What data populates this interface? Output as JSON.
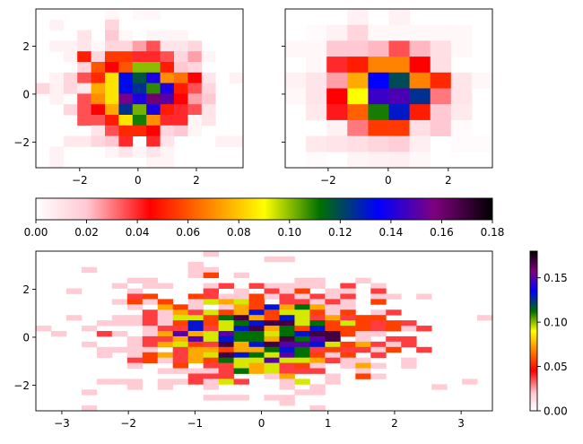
{
  "colormap": {
    "stops": [
      {
        "v": 0.0,
        "color": "#ffffff"
      },
      {
        "v": 0.02,
        "color": "#ffc8d2"
      },
      {
        "v": 0.045,
        "color": "#ff0000"
      },
      {
        "v": 0.09,
        "color": "#ffff00"
      },
      {
        "v": 0.112,
        "color": "#007000"
      },
      {
        "v": 0.135,
        "color": "#0000ff"
      },
      {
        "v": 0.157,
        "color": "#800080"
      },
      {
        "v": 0.18,
        "color": "#000000"
      }
    ]
  },
  "chart_data": [
    {
      "type": "heatmap",
      "title": "",
      "xlim": [
        -3.5,
        3.6
      ],
      "ylim": [
        -3.07,
        3.55
      ],
      "xticks": [
        -2,
        0,
        2
      ],
      "yticks": [
        -2,
        0,
        2
      ],
      "xtick_labels": [
        "−2",
        "0",
        "2"
      ],
      "ytick_labels": [
        "−2",
        "0",
        "2"
      ],
      "vmin": 0,
      "vmax": 0.18,
      "values": [
        [
          0,
          0,
          0,
          0,
          0,
          0.003,
          0,
          0.003,
          0.003,
          0,
          0,
          0,
          0,
          0,
          0
        ],
        [
          0,
          0.005,
          0,
          0,
          0,
          0.015,
          0,
          0,
          0,
          0,
          0,
          0,
          0,
          0,
          0
        ],
        [
          0,
          0,
          0,
          0.01,
          0,
          0.02,
          0.003,
          0,
          0.004,
          0.004,
          0.004,
          0,
          0,
          0,
          0
        ],
        [
          0,
          0.005,
          0.005,
          0.01,
          0.003,
          0.015,
          0.015,
          0.025,
          0.035,
          0.01,
          0.01,
          0.015,
          0,
          0,
          0
        ],
        [
          0,
          0,
          0.005,
          0.05,
          0.015,
          0.055,
          0.055,
          0.04,
          0.04,
          0.035,
          0.015,
          0.025,
          0.004,
          0,
          0
        ],
        [
          0,
          0,
          0,
          0.015,
          0.06,
          0.045,
          0.06,
          0.1,
          0.1,
          0.05,
          0.02,
          0.015,
          0,
          0,
          0
        ],
        [
          0,
          0.005,
          0.015,
          0.035,
          0.052,
          0.085,
          0.133,
          0.118,
          0.14,
          0.07,
          0.065,
          0.045,
          0.01,
          0,
          0.005
        ],
        [
          0.015,
          0.005,
          0.015,
          0.008,
          0.075,
          0.085,
          0.133,
          0.125,
          0.108,
          0.14,
          0.05,
          0.035,
          0.015,
          0,
          0
        ],
        [
          0,
          0.005,
          0,
          0.035,
          0.07,
          0.085,
          0.155,
          0.14,
          0.16,
          0.15,
          0.045,
          0.025,
          0.02,
          0,
          0
        ],
        [
          0,
          0,
          0.015,
          0.035,
          0.045,
          0.075,
          0.125,
          0.102,
          0.14,
          0.05,
          0.04,
          0.035,
          0.01,
          0,
          0
        ],
        [
          0,
          0,
          0,
          0.035,
          0.035,
          0.05,
          0.085,
          0.11,
          0.07,
          0.04,
          0.04,
          0.004,
          0.01,
          0,
          0
        ],
        [
          0,
          0,
          0,
          0,
          0.01,
          0.035,
          0.052,
          0.052,
          0.045,
          0.015,
          0.02,
          0.004,
          0,
          0,
          0
        ],
        [
          0,
          0,
          0.008,
          0.008,
          0.015,
          0.02,
          0.04,
          0,
          0.04,
          0.01,
          0,
          0,
          0,
          0.005,
          0.005
        ],
        [
          0,
          0.005,
          0,
          0,
          0,
          0.004,
          0.01,
          0.004,
          0.01,
          0.004,
          0,
          0,
          0,
          0,
          0
        ],
        [
          0,
          0.005,
          0,
          0,
          0,
          0,
          0,
          0,
          0.004,
          0.004,
          0,
          0,
          0,
          0,
          0
        ]
      ]
    },
    {
      "type": "heatmap",
      "title": "",
      "xlim": [
        -3.43,
        3.47
      ],
      "ylim": [
        -3.07,
        3.55
      ],
      "xticks": [
        -2,
        0,
        2
      ],
      "yticks": [
        -2,
        0,
        2
      ],
      "xtick_labels": [
        "−2",
        "0",
        "2"
      ],
      "ytick_labels": [
        "",
        "",
        ""
      ],
      "vmin": 0,
      "vmax": 0.18,
      "values": [
        [
          0,
          0,
          0,
          0.005,
          0,
          0.005,
          0,
          0,
          0,
          0
        ],
        [
          0,
          0.002,
          0.005,
          0.015,
          0.003,
          0.003,
          0.003,
          0.003,
          0.003,
          0
        ],
        [
          0.003,
          0.003,
          0.02,
          0.02,
          0.022,
          0.035,
          0.022,
          0.012,
          0.003,
          0
        ],
        [
          0,
          0.003,
          0.04,
          0.05,
          0.068,
          0.068,
          0.045,
          0.012,
          0,
          0
        ],
        [
          0.005,
          0.01,
          0.025,
          0.075,
          0.135,
          0.12,
          0.068,
          0.052,
          0.01,
          0.003
        ],
        [
          0.003,
          0.01,
          0.045,
          0.09,
          0.145,
          0.148,
          0.125,
          0.03,
          0.01,
          0
        ],
        [
          0,
          0.008,
          0.042,
          0.062,
          0.11,
          0.13,
          0.05,
          0.02,
          0.008,
          0
        ],
        [
          0,
          0,
          0.005,
          0.03,
          0.055,
          0.055,
          0.012,
          0.02,
          0.002,
          0
        ],
        [
          0,
          0.008,
          0.01,
          0.012,
          0.015,
          0.018,
          0.006,
          0,
          0.002,
          0.002
        ],
        [
          0,
          0.002,
          0,
          0.004,
          0.005,
          0.006,
          0.003,
          0,
          0,
          0
        ]
      ]
    },
    {
      "type": "heatmap",
      "title": "",
      "xlim": [
        -3.39,
        3.47
      ],
      "ylim": [
        -3.07,
        3.59
      ],
      "xticks": [
        -3,
        -2,
        -1,
        0,
        1,
        2,
        3
      ],
      "yticks": [
        -2,
        0,
        2
      ],
      "xtick_labels": [
        "−3",
        "−2",
        "−1",
        "0",
        "1",
        "2",
        "3"
      ],
      "ytick_labels": [
        "−2",
        "0",
        "2"
      ],
      "vmin": 0,
      "vmax": 0.18,
      "value_per_count": 0.0187,
      "count_rows": [
        "00000|00000|01000|00000|00000|00000",
        "00000|00000|00000|11000|00000|00000",
        "00000|00000|10000|00000|00000|00000",
        "00010|00000|11000|00000|00000|00000",
        "00000|00000|13010|00000|00000|00000",
        "00000|01100|00000|00110|01000|00000",
        "00000|10110|01202|11110|20100|00000",
        "00100|01000|02010|21301|10200|00000",
        "00000|02300|32113|12121|20110|10000",
        "00000|13130|15453|02212|10300|00000",
        "00000|01043|10143|74641|10000|00000",
        "00000|00214|25347|35531|30120|00000",
        "00100|11215|53694|37524|23300|00001",
        "00001|11213|73567|99563|53232|00000",
        "10010|00122|72579|46373|33231|20000",
        "01002|10148|45866|56799|31100|00000",
        "00000|01224|85766|49689|01022|00000",
        "00010|01245|32947|98875|34212|00000",
        "00001|11102|44344|67623|22130|20000",
        "00001|01342|45976|58631|30200|00000",
        "00000|02312|43655|85542|11001|00000",
        "00000|01003|02254|52310|14101|00000",
        "00000|00011|11264|52220|01000|00000",
        "00000|00000|22200|14001|03100|00000",
        "00001|11011|21520|01501|00000|00010",
        "00000|01010|01000|01010|00000|01000",
        "00010|00000|00000|00110|00000|00000",
        "00000|00000|01110|11000|00000|00000",
        "00000|00000|00000|01000|00000|00000",
        "00010|00000|00000|00010|00000|00000"
      ]
    }
  ],
  "colorbars": {
    "horizontal": {
      "range": [
        0,
        0.18
      ],
      "ticks": [
        0,
        0.02,
        0.04,
        0.06,
        0.08,
        0.1,
        0.12,
        0.14,
        0.16,
        0.18
      ],
      "tick_labels": [
        "0.00",
        "0.02",
        "0.04",
        "0.06",
        "0.08",
        "0.10",
        "0.12",
        "0.14",
        "0.16",
        "0.18"
      ]
    },
    "vertical": {
      "range": [
        0,
        0.18
      ],
      "ticks": [
        0,
        0.05,
        0.1,
        0.15
      ],
      "tick_labels": [
        "0.00",
        "0.05",
        "0.10",
        "0.15"
      ]
    }
  }
}
